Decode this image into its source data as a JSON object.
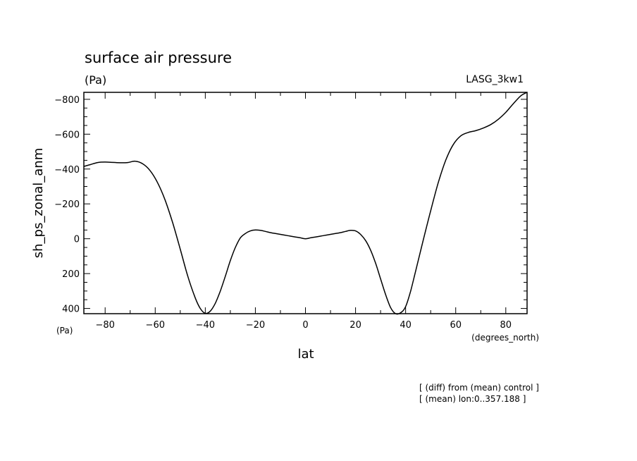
{
  "chart_data": {
    "type": "line",
    "title": "surface air pressure",
    "units_label": "(Pa)",
    "y_units_label": "(Pa)",
    "model_label": "LASG_3kw1",
    "xlabel": "lat",
    "x_units_label": "(degrees_north)",
    "ylabel": "sh_ps_zonal_anm",
    "xlim": [
      -88.5,
      88.5
    ],
    "ylim": [
      -840,
      430
    ],
    "y_inverted": true,
    "x_ticks": [
      -80,
      -60,
      -40,
      -20,
      0,
      20,
      40,
      60,
      80
    ],
    "x_tick_labels": [
      "−80",
      "−60",
      "−40",
      "−20",
      "0",
      "20",
      "40",
      "60",
      "80"
    ],
    "y_ticks": [
      -800,
      -600,
      -400,
      -200,
      0,
      200,
      400
    ],
    "y_tick_labels": [
      "−800",
      "−600",
      "−400",
      "−200",
      "0",
      "200",
      "400"
    ],
    "grid": false,
    "line_color": "#000000",
    "series": [
      {
        "x": [
          -88.5,
          -86,
          -83,
          -80,
          -77,
          -74,
          -71,
          -68,
          -65,
          -62,
          -59,
          -56,
          -53,
          -50,
          -47,
          -44,
          -42,
          -40,
          -38,
          -36,
          -34,
          -32,
          -30,
          -28,
          -26,
          -24,
          -22,
          -20,
          -18,
          -16,
          -14,
          -12,
          -10,
          -8,
          -6,
          -4,
          -2,
          0,
          2,
          4,
          6,
          8,
          10,
          12,
          14,
          16,
          18,
          20,
          22,
          24,
          26,
          28,
          30,
          32,
          34,
          36,
          38,
          40,
          42,
          44,
          47,
          50,
          53,
          56,
          59,
          62,
          65,
          68,
          71,
          74,
          77,
          80,
          83,
          86,
          88.5
        ],
        "y": [
          -415,
          -425,
          -437,
          -440,
          -438,
          -436,
          -437,
          -445,
          -430,
          -390,
          -320,
          -220,
          -90,
          60,
          215,
          340,
          400,
          428,
          415,
          370,
          300,
          215,
          125,
          50,
          -5,
          -30,
          -45,
          -50,
          -48,
          -42,
          -35,
          -30,
          -25,
          -20,
          -15,
          -10,
          -5,
          0,
          -5,
          -10,
          -15,
          -20,
          -25,
          -30,
          -35,
          -42,
          -48,
          -45,
          -25,
          10,
          65,
          140,
          230,
          320,
          395,
          430,
          425,
          390,
          300,
          185,
          10,
          -160,
          -320,
          -450,
          -540,
          -590,
          -610,
          -620,
          -635,
          -655,
          -685,
          -725,
          -775,
          -820,
          -840
        ]
      }
    ],
    "annotations": [
      "[ (diff) from (mean) control ]",
      "[ (mean) lon:0..357.188 ]"
    ]
  }
}
